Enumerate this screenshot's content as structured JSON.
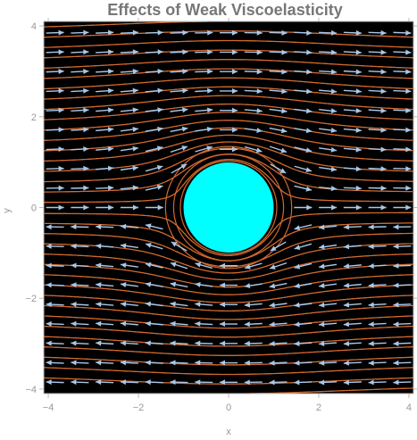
{
  "chart_data": {
    "type": "vector-field",
    "title": "Effects of Weak Viscoelasticity",
    "xlabel": "x",
    "ylabel": "y",
    "xlim": [
      -4.1,
      4.1
    ],
    "ylim": [
      -4.1,
      4.1
    ],
    "x_ticks": [
      -4,
      -2,
      0,
      2,
      4
    ],
    "y_ticks": [
      -4,
      -2,
      0,
      2,
      4
    ],
    "x_tick_labels": [
      "−4",
      "−2",
      "0",
      "2",
      "4"
    ],
    "y_tick_labels": [
      "−4",
      "−2",
      "0",
      "2",
      "4"
    ],
    "cylinder": {
      "center": [
        0,
        0
      ],
      "radius": 1.0
    },
    "flow": "rightward above the cylinder (y > 0), leftward below it (y < 0)",
    "grid": false,
    "legend": "none",
    "colors": {
      "background": "#000000",
      "streamlines": "#d2692e",
      "arrows": "#a9c8e8",
      "cylinder": "#00ffff",
      "title": "#777777",
      "ticks": "#999999"
    }
  }
}
